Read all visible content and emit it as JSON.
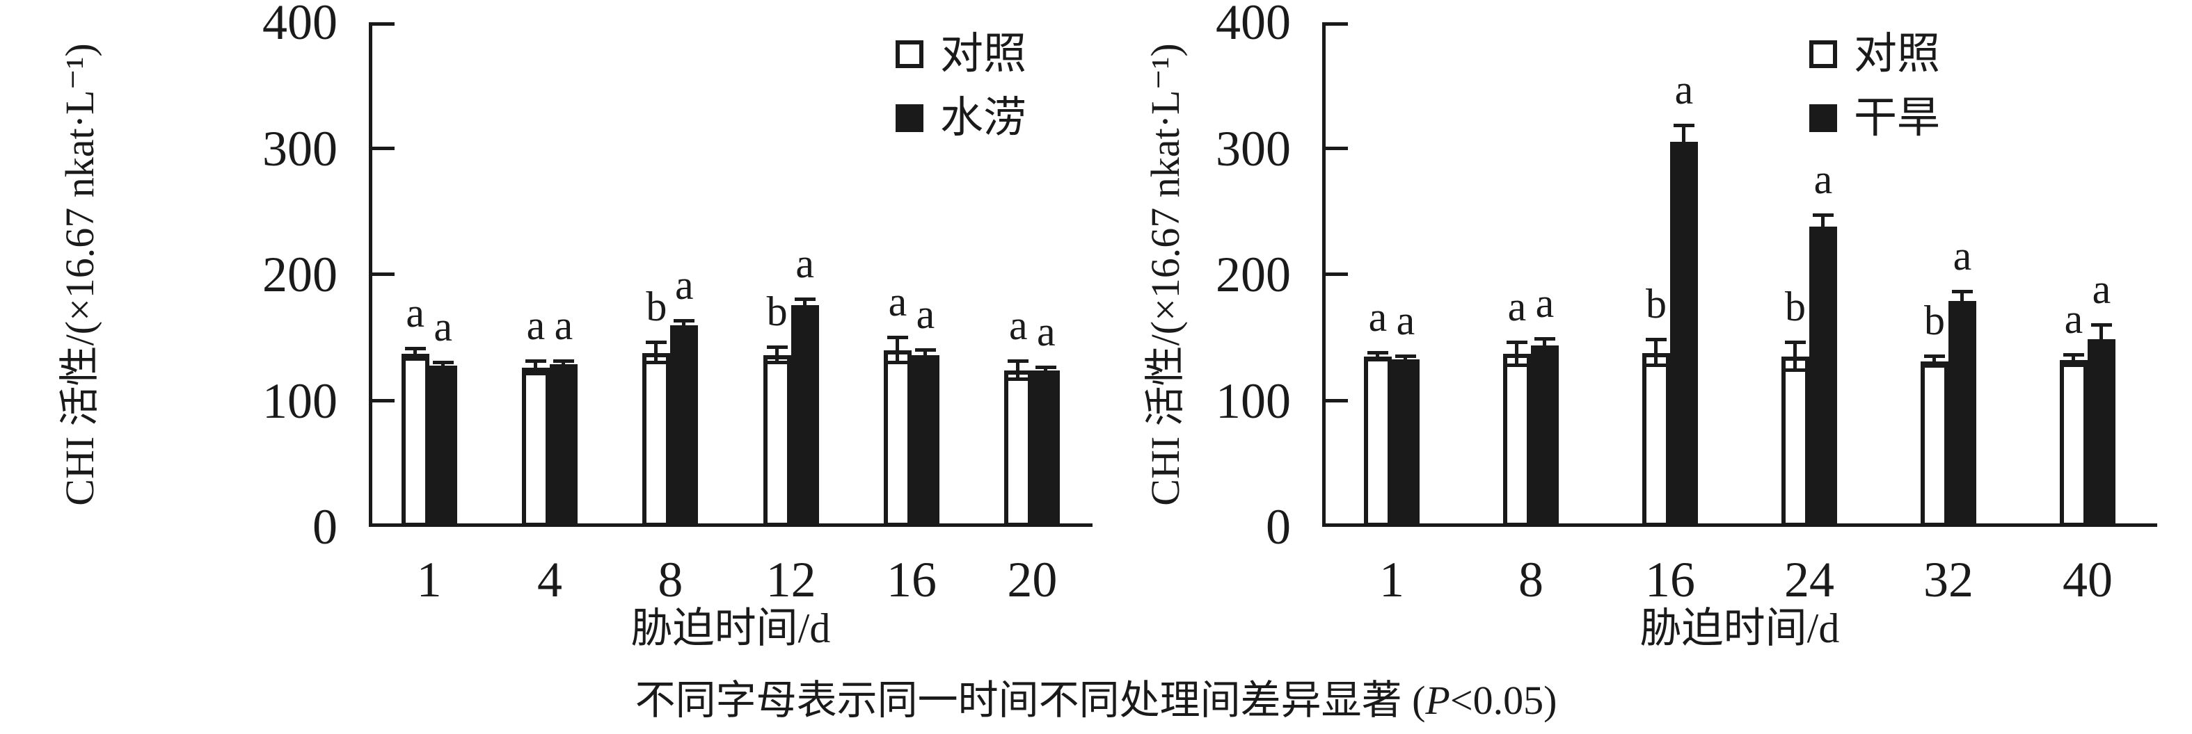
{
  "figure": {
    "caption_prefix": "不同字母表示同一时间不同处理间差异显著 (",
    "caption_p": "P",
    "caption_suffix": "<0.05)"
  },
  "colors": {
    "ink": "#1a1a1a",
    "control_fill": "#ffffff",
    "stress_fill": "#1a1a1a"
  },
  "chart_data": [
    {
      "type": "bar",
      "panel": "waterlogging",
      "title": "",
      "xlabel": "胁迫时间/d",
      "ylabel": "CHI 活性/(×16.67 nkat·L⁻¹)",
      "ylim": [
        0,
        400
      ],
      "yticks": [
        0,
        100,
        200,
        300,
        400
      ],
      "grid": false,
      "legend_position": "top-right-inside",
      "categories": [
        "1",
        "4",
        "8",
        "12",
        "16",
        "20"
      ],
      "series": [
        {
          "name": "对照",
          "fill": "#ffffff",
          "values": [
            137,
            126,
            138,
            136,
            140,
            124
          ],
          "errors": [
            4,
            5,
            8,
            6,
            10,
            7
          ],
          "sig_letters": [
            "a",
            "a",
            "b",
            "b",
            "a",
            "a"
          ]
        },
        {
          "name": "水涝",
          "fill": "#1a1a1a",
          "values": [
            128,
            129,
            160,
            176,
            136,
            124
          ],
          "errors": [
            2,
            2,
            3,
            4,
            4,
            2
          ],
          "sig_letters": [
            "a",
            "a",
            "a",
            "a",
            "a",
            "a"
          ]
        }
      ]
    },
    {
      "type": "bar",
      "panel": "drought",
      "title": "",
      "xlabel": "胁迫时间/d",
      "ylabel": "CHI 活性/(×16.67 nkat·L⁻¹)",
      "ylim": [
        0,
        400
      ],
      "yticks": [
        0,
        100,
        200,
        300,
        400
      ],
      "grid": false,
      "legend_position": "top-right-inside",
      "categories": [
        "1",
        "8",
        "16",
        "24",
        "32",
        "40"
      ],
      "series": [
        {
          "name": "对照",
          "fill": "#ffffff",
          "values": [
            135,
            137,
            138,
            135,
            131,
            132
          ],
          "errors": [
            3,
            9,
            10,
            11,
            4,
            4
          ],
          "sig_letters": [
            "a",
            "a",
            "b",
            "b",
            "b",
            "a"
          ]
        },
        {
          "name": "干旱",
          "fill": "#1a1a1a",
          "values": [
            133,
            144,
            305,
            238,
            179,
            149
          ],
          "errors": [
            2,
            5,
            13,
            9,
            7,
            11
          ],
          "sig_letters": [
            "a",
            "a",
            "a",
            "a",
            "a",
            "a"
          ]
        }
      ]
    }
  ]
}
